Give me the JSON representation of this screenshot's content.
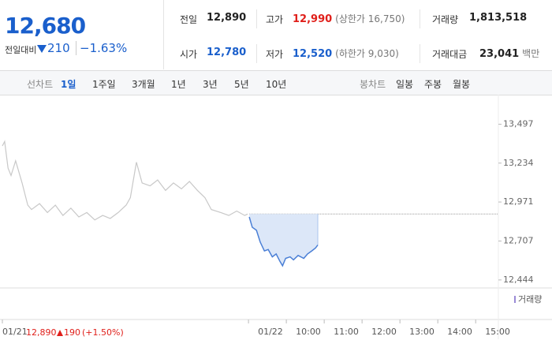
{
  "quote": {
    "price": "12,680",
    "change_label": "전일대비",
    "change": "210",
    "change_pct": "−1.63%"
  },
  "summary": [
    {
      "label": "전일",
      "value": "12,890",
      "color": "#222"
    },
    {
      "label": "고가",
      "value": "12,990",
      "note": "(상한가 16,750)",
      "color": "#e0201b"
    },
    {
      "label": "거래량",
      "value": "1,813,518",
      "color": "#222"
    },
    {
      "label": "시가",
      "value": "12,780",
      "color": "#1a5fcc"
    },
    {
      "label": "저가",
      "value": "12,520",
      "note": "(하한가 9,030)",
      "color": "#1a5fcc"
    },
    {
      "label": "거래대금",
      "value": "23,041",
      "note": "백만",
      "color": "#222"
    }
  ],
  "tabs": {
    "line_label": "선차트",
    "line": [
      "1일",
      "1주일",
      "3개월",
      "1년",
      "3년",
      "5년",
      "10년"
    ],
    "candle_label": "봉차트",
    "candle": [
      "일봉",
      "주봉",
      "월봉"
    ]
  },
  "chart_data": {
    "type": "line",
    "volume_label": "거래량",
    "xlim": [
      0,
      13.1
    ],
    "ylim": [
      12390,
      13670
    ],
    "xticks": [
      {
        "value": 0,
        "label": "01/21"
      },
      {
        "value": 6.5,
        "label": "01/22"
      },
      {
        "value": 7.5,
        "label": "10:00"
      },
      {
        "value": 8.5,
        "label": "11:00"
      },
      {
        "value": 9.5,
        "label": "12:00"
      },
      {
        "value": 10.5,
        "label": "13:00"
      },
      {
        "value": 11.5,
        "label": "14:00"
      },
      {
        "value": 12.5,
        "label": "15:00"
      }
    ],
    "yticks": [
      {
        "value": 13497,
        "label": "13,497"
      },
      {
        "value": 13234,
        "label": "13,234"
      },
      {
        "value": 12971,
        "label": "12,971"
      },
      {
        "value": 12707,
        "label": "12,707"
      },
      {
        "value": 12444,
        "label": "12,444"
      }
    ],
    "reference": 12890,
    "series": [
      {
        "color": "#c8c8c8",
        "x": [
          0,
          0.06,
          0.15,
          0.23,
          0.35,
          0.52,
          0.67,
          0.77,
          0.98,
          1.19,
          1.4,
          1.6,
          1.81,
          2.02,
          2.23,
          2.44,
          2.65,
          2.85,
          3.06,
          3.27,
          3.38,
          3.48,
          3.54,
          3.69,
          3.9,
          4.1,
          4.31,
          4.52,
          4.73,
          4.94,
          5.15,
          5.35,
          5.52,
          5.77,
          5.98,
          6.19,
          6.4,
          6.48
        ],
        "values": [
          13350,
          13380,
          13200,
          13150,
          13250,
          13100,
          12950,
          12920,
          12960,
          12900,
          12950,
          12880,
          12930,
          12870,
          12900,
          12850,
          12880,
          12860,
          12900,
          12950,
          13000,
          13150,
          13240,
          13100,
          13080,
          13120,
          13050,
          13100,
          13060,
          13110,
          13050,
          13000,
          12920,
          12900,
          12880,
          12910,
          12880,
          12890
        ]
      },
      {
        "color": "#4a7fd6",
        "fill": "#dce7f8",
        "x": [
          6.52,
          6.6,
          6.71,
          6.81,
          6.92,
          7.02,
          7.13,
          7.23,
          7.33,
          7.4,
          7.48,
          7.6,
          7.69,
          7.81,
          7.96,
          8.06,
          8.17,
          8.27,
          8.33
        ],
        "values": [
          12870,
          12800,
          12780,
          12700,
          12640,
          12650,
          12600,
          12620,
          12570,
          12540,
          12590,
          12600,
          12580,
          12610,
          12590,
          12620,
          12640,
          12660,
          12680
        ]
      }
    ]
  },
  "footer": {
    "date": "01/21",
    "price": "12,890",
    "change": "190",
    "change_pct": "(+1.50%)"
  }
}
